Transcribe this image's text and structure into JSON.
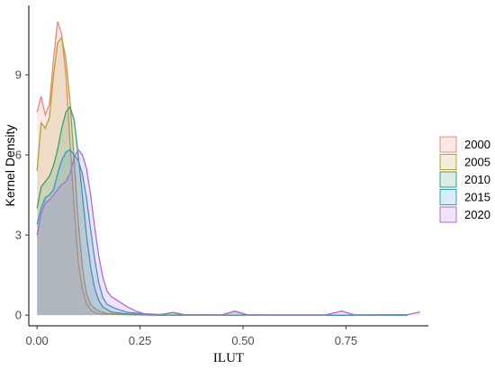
{
  "chart_data": {
    "type": "area",
    "title": "",
    "xlabel": "ILUT",
    "ylabel": "Kernel Density",
    "xlim": [
      -0.02,
      0.95
    ],
    "ylim": [
      -0.4,
      11.6
    ],
    "x_ticks": [
      0.0,
      0.25,
      0.5,
      0.75
    ],
    "x_tick_labels": [
      "0.00",
      "0.25",
      "0.50",
      "0.75"
    ],
    "y_ticks": [
      0,
      3,
      6,
      9
    ],
    "y_tick_labels": [
      "0",
      "3",
      "6",
      "9"
    ],
    "grid": false,
    "legend_position": "right",
    "series": [
      {
        "name": "2000",
        "color": "#e8877c",
        "points": [
          [
            0.0,
            7.6
          ],
          [
            0.01,
            8.2
          ],
          [
            0.02,
            7.5
          ],
          [
            0.03,
            7.9
          ],
          [
            0.04,
            9.6
          ],
          [
            0.05,
            11.0
          ],
          [
            0.06,
            10.5
          ],
          [
            0.07,
            9.0
          ],
          [
            0.08,
            6.5
          ],
          [
            0.09,
            4.0
          ],
          [
            0.1,
            2.0
          ],
          [
            0.11,
            1.0
          ],
          [
            0.12,
            0.45
          ],
          [
            0.13,
            0.2
          ],
          [
            0.14,
            0.1
          ],
          [
            0.15,
            0.05
          ],
          [
            0.2,
            0.02
          ],
          [
            0.3,
            0.0
          ],
          [
            0.9,
            0.0
          ]
        ]
      },
      {
        "name": "2005",
        "color": "#b8a030",
        "points": [
          [
            0.0,
            5.4
          ],
          [
            0.01,
            7.2
          ],
          [
            0.02,
            7.0
          ],
          [
            0.03,
            7.4
          ],
          [
            0.04,
            9.0
          ],
          [
            0.05,
            10.2
          ],
          [
            0.06,
            10.4
          ],
          [
            0.07,
            9.6
          ],
          [
            0.08,
            8.0
          ],
          [
            0.09,
            5.8
          ],
          [
            0.1,
            3.5
          ],
          [
            0.11,
            1.8
          ],
          [
            0.12,
            0.8
          ],
          [
            0.13,
            0.4
          ],
          [
            0.14,
            0.25
          ],
          [
            0.15,
            0.15
          ],
          [
            0.17,
            0.06
          ],
          [
            0.2,
            0.03
          ],
          [
            0.25,
            0.01
          ],
          [
            0.3,
            0.0
          ],
          [
            0.9,
            0.0
          ]
        ]
      },
      {
        "name": "2010",
        "color": "#3aa070",
        "points": [
          [
            0.0,
            4.0
          ],
          [
            0.01,
            4.8
          ],
          [
            0.02,
            5.0
          ],
          [
            0.03,
            5.2
          ],
          [
            0.04,
            5.6
          ],
          [
            0.05,
            6.2
          ],
          [
            0.06,
            7.0
          ],
          [
            0.07,
            7.6
          ],
          [
            0.08,
            7.8
          ],
          [
            0.09,
            7.3
          ],
          [
            0.1,
            6.0
          ],
          [
            0.11,
            4.5
          ],
          [
            0.12,
            3.0
          ],
          [
            0.13,
            1.8
          ],
          [
            0.14,
            1.0
          ],
          [
            0.15,
            0.55
          ],
          [
            0.16,
            0.3
          ],
          [
            0.18,
            0.12
          ],
          [
            0.2,
            0.08
          ],
          [
            0.22,
            0.04
          ],
          [
            0.26,
            0.01
          ],
          [
            0.3,
            0.0
          ],
          [
            0.9,
            0.0
          ]
        ]
      },
      {
        "name": "2015",
        "color": "#2a9dc8",
        "points": [
          [
            0.0,
            3.4
          ],
          [
            0.01,
            4.0
          ],
          [
            0.02,
            4.4
          ],
          [
            0.03,
            4.5
          ],
          [
            0.04,
            4.7
          ],
          [
            0.05,
            5.3
          ],
          [
            0.06,
            5.8
          ],
          [
            0.07,
            6.1
          ],
          [
            0.08,
            6.2
          ],
          [
            0.09,
            6.0
          ],
          [
            0.1,
            5.8
          ],
          [
            0.11,
            5.3
          ],
          [
            0.12,
            4.4
          ],
          [
            0.13,
            3.2
          ],
          [
            0.14,
            2.1
          ],
          [
            0.15,
            1.2
          ],
          [
            0.16,
            0.65
          ],
          [
            0.17,
            0.4
          ],
          [
            0.19,
            0.25
          ],
          [
            0.22,
            0.1
          ],
          [
            0.26,
            0.05
          ],
          [
            0.3,
            0.02
          ],
          [
            0.33,
            0.1
          ],
          [
            0.35,
            0.02
          ],
          [
            0.45,
            0.01
          ],
          [
            0.48,
            0.15
          ],
          [
            0.51,
            0.01
          ],
          [
            0.6,
            0.0
          ],
          [
            0.9,
            0.0
          ]
        ]
      },
      {
        "name": "2020",
        "color": "#b06ad8",
        "points": [
          [
            0.0,
            3.0
          ],
          [
            0.01,
            3.8
          ],
          [
            0.02,
            4.2
          ],
          [
            0.03,
            4.3
          ],
          [
            0.04,
            4.5
          ],
          [
            0.05,
            4.7
          ],
          [
            0.06,
            4.9
          ],
          [
            0.07,
            5.0
          ],
          [
            0.08,
            5.3
          ],
          [
            0.09,
            5.9
          ],
          [
            0.1,
            6.2
          ],
          [
            0.11,
            6.0
          ],
          [
            0.12,
            5.5
          ],
          [
            0.13,
            4.5
          ],
          [
            0.14,
            3.3
          ],
          [
            0.15,
            2.2
          ],
          [
            0.16,
            1.4
          ],
          [
            0.17,
            0.9
          ],
          [
            0.18,
            0.7
          ],
          [
            0.19,
            0.6
          ],
          [
            0.2,
            0.5
          ],
          [
            0.21,
            0.4
          ],
          [
            0.22,
            0.3
          ],
          [
            0.24,
            0.15
          ],
          [
            0.26,
            0.05
          ],
          [
            0.3,
            0.02
          ],
          [
            0.33,
            0.1
          ],
          [
            0.36,
            0.01
          ],
          [
            0.45,
            0.01
          ],
          [
            0.48,
            0.15
          ],
          [
            0.51,
            0.01
          ],
          [
            0.7,
            0.01
          ],
          [
            0.74,
            0.15
          ],
          [
            0.77,
            0.01
          ],
          [
            0.9,
            0.02
          ],
          [
            0.93,
            0.12
          ]
        ]
      }
    ]
  }
}
